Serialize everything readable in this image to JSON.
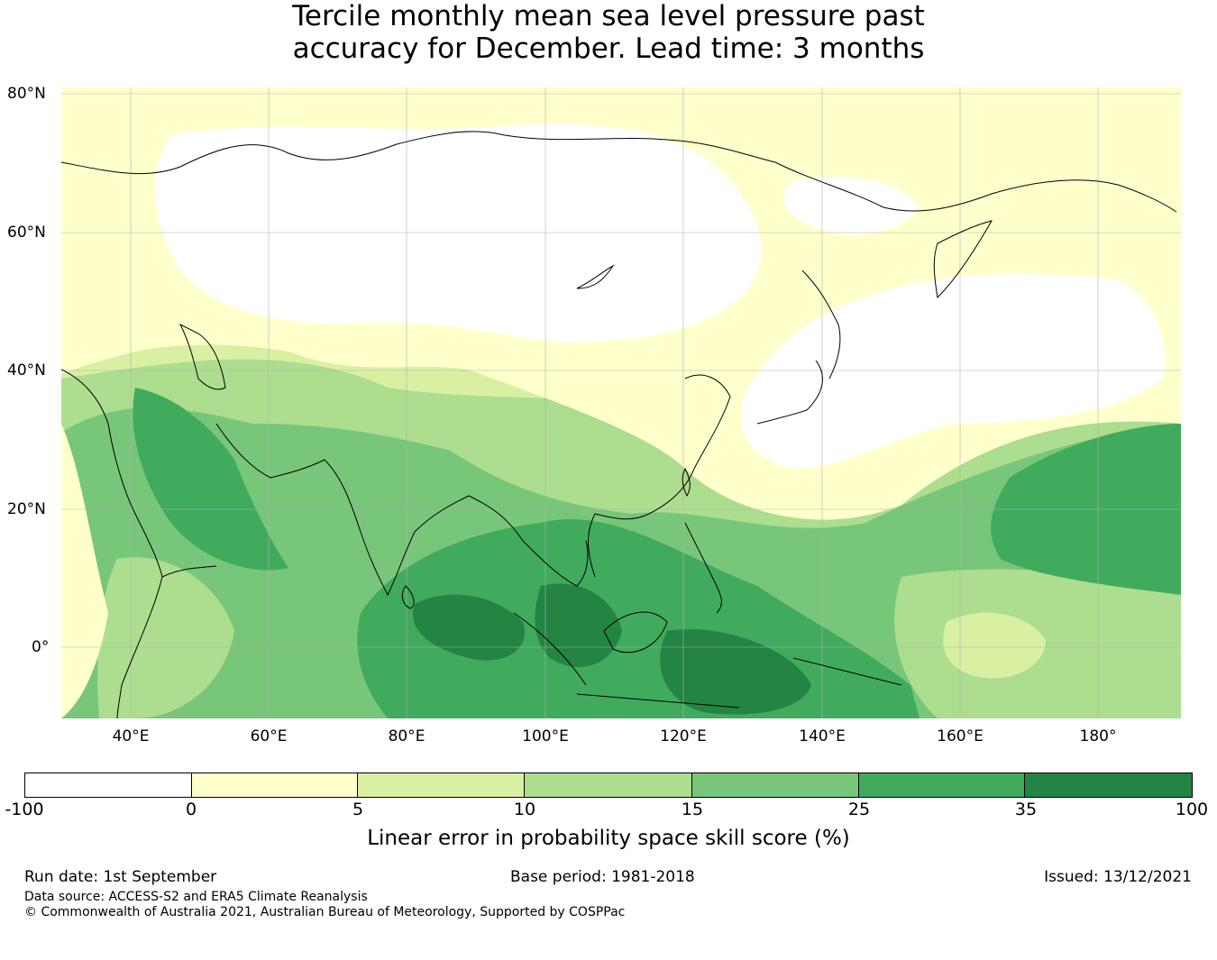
{
  "title": {
    "line1": "Tercile monthly mean sea level pressure past",
    "line2": "accuracy for December. Lead time: 3 months"
  },
  "map": {
    "lat_labels": [
      "80°N",
      "60°N",
      "40°N",
      "20°N",
      "0°"
    ],
    "lon_labels": [
      "40°E",
      "60°E",
      "80°E",
      "100°E",
      "120°E",
      "140°E",
      "160°E",
      "180°"
    ],
    "colors": {
      "lt0": "#ffffff",
      "c0_5": "#ffffcc",
      "c5_10": "#d9f0a3",
      "c10_15": "#addd8e",
      "c15_25": "#78c679",
      "c25_35": "#41ab5d",
      "c35_100": "#238443",
      "coast": "#000000",
      "grid": "#b0b0b0"
    }
  },
  "colorbar": {
    "ticks": [
      "-100",
      "0",
      "5",
      "10",
      "15",
      "25",
      "35",
      "100"
    ],
    "colors": [
      "#ffffff",
      "#ffffcc",
      "#d9f0a3",
      "#addd8e",
      "#78c679",
      "#41ab5d",
      "#238443"
    ],
    "label": "Linear error in probability space skill score (%)"
  },
  "footer": {
    "run_date": "Run date: 1st September",
    "base_period": "Base period: 1981-2018",
    "issued": "Issued: 13/12/2021",
    "data_source": "Data source: ACCESS-S2 and ERA5 Climate Reanalysis",
    "copyright": "© Commonwealth of Australia 2021, Australian Bureau of Meteorology, Supported by COSPPac"
  }
}
